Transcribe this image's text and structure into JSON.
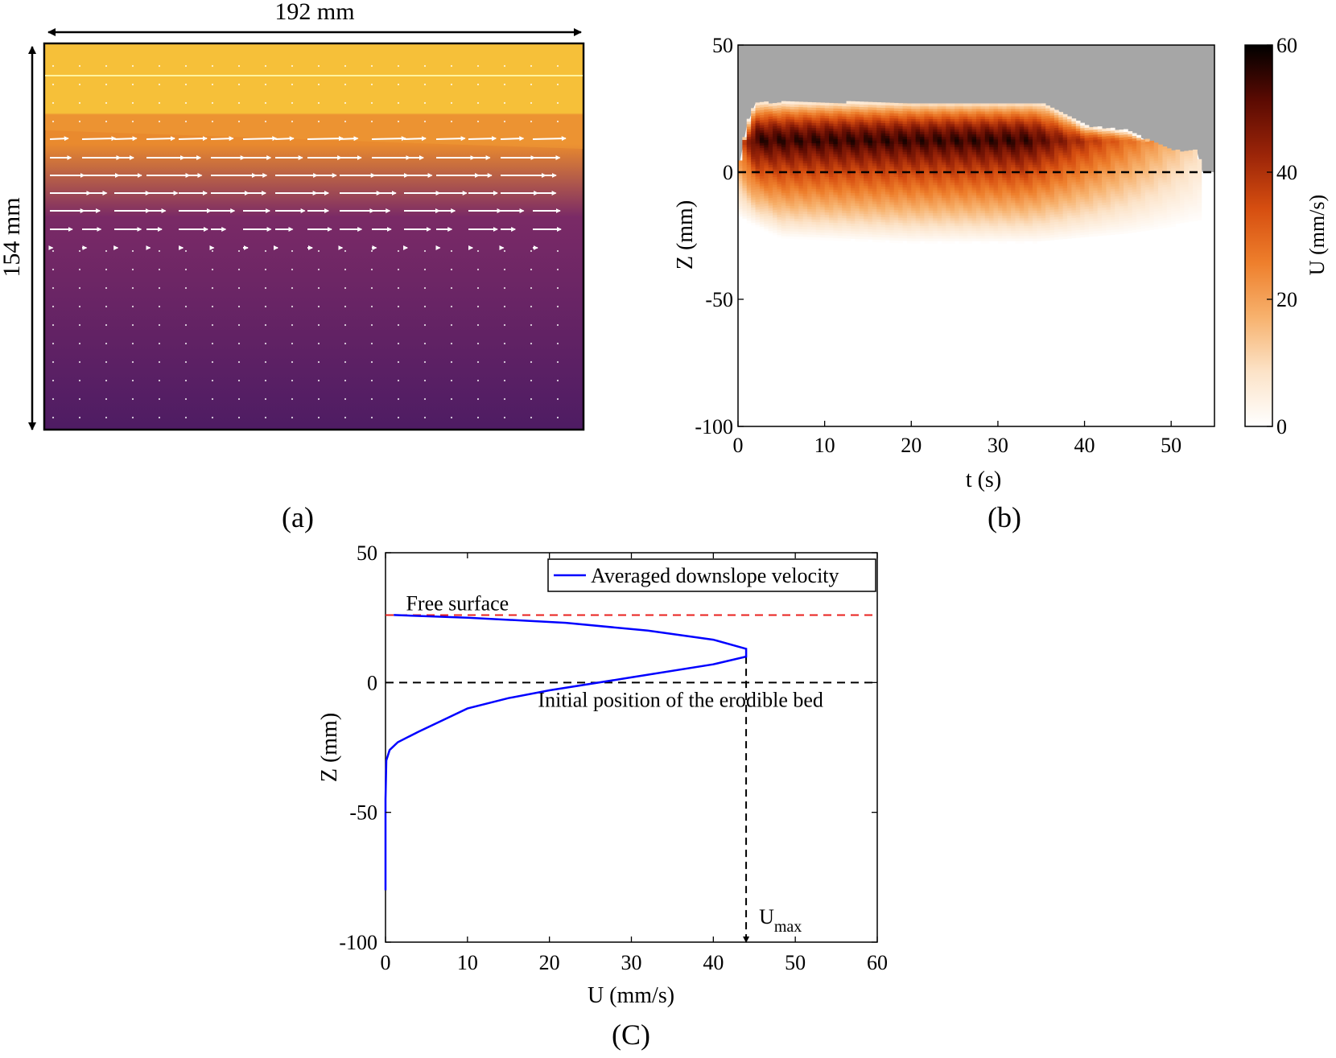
{
  "panel_a": {
    "label": "(a)",
    "width_label": "192 mm",
    "height_label": "154 mm",
    "colors": {
      "bright": "#F7CF3A",
      "mid": "#E98A2E",
      "dark": "#4E1C63"
    }
  },
  "chart_data": [
    {
      "id": "b",
      "type": "heatmap",
      "label": "(b)",
      "xlabel": "t (s)",
      "ylabel": "Z (mm)",
      "colorbar_label": "U (mm/s)",
      "xlim": [
        0,
        55
      ],
      "ylim": [
        -100,
        50
      ],
      "clim": [
        0,
        60
      ],
      "xticks": [
        0,
        10,
        20,
        30,
        40,
        50
      ],
      "yticks": [
        -100,
        -50,
        0,
        50
      ],
      "cticks": [
        0,
        20,
        40,
        60
      ],
      "no_data_color": "#A6A6A6",
      "colormap": [
        "#FFFFFF",
        "#FCE3C8",
        "#F7B26E",
        "#EE7F2C",
        "#D64E10",
        "#9A2408",
        "#5A0A02",
        "#000000"
      ],
      "reference_line_z": 0,
      "surface_profile": [
        [
          0,
          0
        ],
        [
          1,
          18
        ],
        [
          2,
          27
        ],
        [
          35,
          27
        ],
        [
          37,
          24
        ],
        [
          40,
          18
        ],
        [
          45,
          16
        ],
        [
          50,
          8
        ],
        [
          53,
          8
        ],
        [
          53.6,
          0
        ]
      ],
      "bed_profile": [
        [
          0,
          -10
        ],
        [
          5,
          -18
        ],
        [
          20,
          -20
        ],
        [
          35,
          -20
        ],
        [
          45,
          -17
        ],
        [
          55,
          -12
        ]
      ],
      "max_velocity_layer_z": 12
    },
    {
      "id": "c",
      "type": "line",
      "label": "(C)",
      "xlabel": "U (mm/s)",
      "ylabel": "Z (mm)",
      "xlim": [
        0,
        60
      ],
      "ylim": [
        -100,
        50
      ],
      "xticks": [
        0,
        10,
        20,
        30,
        40,
        50,
        60
      ],
      "yticks": [
        -100,
        -50,
        0,
        50
      ],
      "series": [
        {
          "name": "Averaged downslope velocity",
          "color": "#0000FF",
          "points": [
            [
              0,
              -80
            ],
            [
              0,
              -45
            ],
            [
              0.1,
              -30
            ],
            [
              0.5,
              -26
            ],
            [
              1.5,
              -23
            ],
            [
              4,
              -19
            ],
            [
              10,
              -10
            ],
            [
              15,
              -6
            ],
            [
              20,
              -3
            ],
            [
              30,
              2
            ],
            [
              40,
              7
            ],
            [
              44,
              10
            ],
            [
              44,
              13
            ],
            [
              40,
              16.5
            ],
            [
              32,
              20
            ],
            [
              22,
              23
            ],
            [
              10,
              25
            ],
            [
              1,
              26
            ]
          ]
        }
      ],
      "free_surface": {
        "z": 26,
        "label": "Free surface",
        "color": "#E8201E"
      },
      "initial_bed": {
        "z": 0,
        "label": "Initial position of the erodible bed",
        "color": "#000000"
      },
      "umax": {
        "u": 44,
        "z": 10,
        "label": "U",
        "subscript": "max"
      }
    }
  ]
}
